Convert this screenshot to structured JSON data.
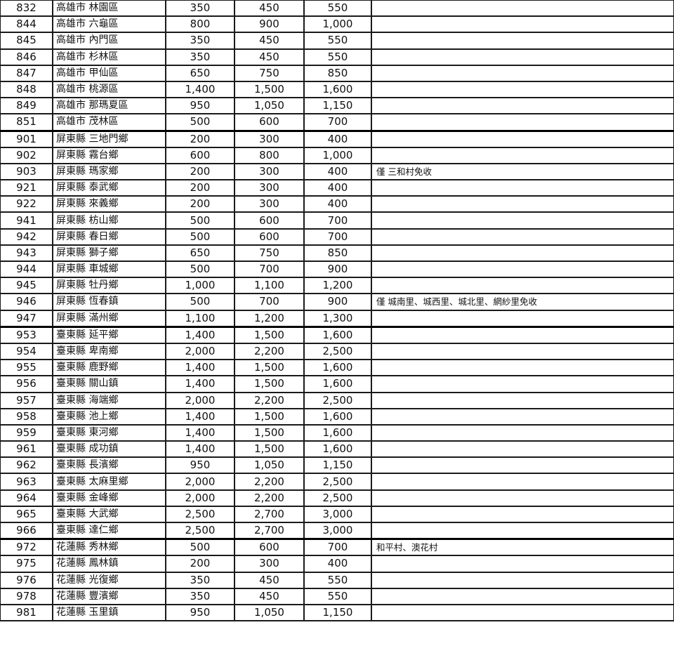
{
  "rows": [
    {
      "code": "832",
      "name": "高雄市 林園區",
      "a": "350",
      "b": "450",
      "c": "550",
      "note": ""
    },
    {
      "code": "844",
      "name": "高雄市 六龜區",
      "a": "800",
      "b": "900",
      "c": "1,000",
      "note": ""
    },
    {
      "code": "845",
      "name": "高雄市 內門區",
      "a": "350",
      "b": "450",
      "c": "550",
      "note": ""
    },
    {
      "code": "846",
      "name": "高雄市 杉林區",
      "a": "350",
      "b": "450",
      "c": "550",
      "note": ""
    },
    {
      "code": "847",
      "name": "高雄市 甲仙區",
      "a": "650",
      "b": "750",
      "c": "850",
      "note": ""
    },
    {
      "code": "848",
      "name": "高雄市 桃源區",
      "a": "1,400",
      "b": "1,500",
      "c": "1,600",
      "note": ""
    },
    {
      "code": "849",
      "name": "高雄市 那瑪夏區",
      "a": "950",
      "b": "1,050",
      "c": "1,150",
      "note": ""
    },
    {
      "code": "851",
      "name": "高雄市 茂林區",
      "a": "500",
      "b": "600",
      "c": "700",
      "note": "",
      "groupEnd": true
    },
    {
      "code": "901",
      "name": "屏東縣 三地門鄉",
      "a": "200",
      "b": "300",
      "c": "400",
      "note": ""
    },
    {
      "code": "902",
      "name": "屏東縣 霧台鄉",
      "a": "600",
      "b": "800",
      "c": "1,000",
      "note": ""
    },
    {
      "code": "903",
      "name": "屏東縣 瑪家鄉",
      "a": "200",
      "b": "300",
      "c": "400",
      "note": "僅 三和村免收"
    },
    {
      "code": "921",
      "name": "屏東縣 泰武鄉",
      "a": "200",
      "b": "300",
      "c": "400",
      "note": ""
    },
    {
      "code": "922",
      "name": "屏東縣 來義鄉",
      "a": "200",
      "b": "300",
      "c": "400",
      "note": ""
    },
    {
      "code": "941",
      "name": "屏東縣 枋山鄉",
      "a": "500",
      "b": "600",
      "c": "700",
      "note": ""
    },
    {
      "code": "942",
      "name": "屏東縣 春日鄉",
      "a": "500",
      "b": "600",
      "c": "700",
      "note": ""
    },
    {
      "code": "943",
      "name": "屏東縣 獅子鄉",
      "a": "650",
      "b": "750",
      "c": "850",
      "note": ""
    },
    {
      "code": "944",
      "name": "屏東縣 車城鄉",
      "a": "500",
      "b": "700",
      "c": "900",
      "note": ""
    },
    {
      "code": "945",
      "name": "屏東縣 牡丹鄉",
      "a": "1,000",
      "b": "1,100",
      "c": "1,200",
      "note": ""
    },
    {
      "code": "946",
      "name": "屏東縣 恆春鎮",
      "a": "500",
      "b": "700",
      "c": "900",
      "note": "僅 城南里、城西里、城北里、網紗里免收"
    },
    {
      "code": "947",
      "name": "屏東縣 滿州鄉",
      "a": "1,100",
      "b": "1,200",
      "c": "1,300",
      "note": "",
      "groupEnd": true
    },
    {
      "code": "953",
      "name": "臺東縣 延平鄉",
      "a": "1,400",
      "b": "1,500",
      "c": "1,600",
      "note": ""
    },
    {
      "code": "954",
      "name": "臺東縣 卑南鄉",
      "a": "2,000",
      "b": "2,200",
      "c": "2,500",
      "note": ""
    },
    {
      "code": "955",
      "name": "臺東縣 鹿野鄉",
      "a": "1,400",
      "b": "1,500",
      "c": "1,600",
      "note": ""
    },
    {
      "code": "956",
      "name": "臺東縣 關山鎮",
      "a": "1,400",
      "b": "1,500",
      "c": "1,600",
      "note": ""
    },
    {
      "code": "957",
      "name": "臺東縣 海端鄉",
      "a": "2,000",
      "b": "2,200",
      "c": "2,500",
      "note": ""
    },
    {
      "code": "958",
      "name": "臺東縣 池上鄉",
      "a": "1,400",
      "b": "1,500",
      "c": "1,600",
      "note": ""
    },
    {
      "code": "959",
      "name": "臺東縣 東河鄉",
      "a": "1,400",
      "b": "1,500",
      "c": "1,600",
      "note": ""
    },
    {
      "code": "961",
      "name": "臺東縣 成功鎮",
      "a": "1,400",
      "b": "1,500",
      "c": "1,600",
      "note": ""
    },
    {
      "code": "962",
      "name": "臺東縣 長濱鄉",
      "a": "950",
      "b": "1,050",
      "c": "1,150",
      "note": ""
    },
    {
      "code": "963",
      "name": "臺東縣 太麻里鄉",
      "a": "2,000",
      "b": "2,200",
      "c": "2,500",
      "note": ""
    },
    {
      "code": "964",
      "name": "臺東縣 金峰鄉",
      "a": "2,000",
      "b": "2,200",
      "c": "2,500",
      "note": ""
    },
    {
      "code": "965",
      "name": "臺東縣 大武鄉",
      "a": "2,500",
      "b": "2,700",
      "c": "3,000",
      "note": ""
    },
    {
      "code": "966",
      "name": "臺東縣 達仁鄉",
      "a": "2,500",
      "b": "2,700",
      "c": "3,000",
      "note": "",
      "groupEnd": true
    },
    {
      "code": "972",
      "name": "花蓮縣 秀林鄉",
      "a": "500",
      "b": "600",
      "c": "700",
      "note": "和平村、澳花村"
    },
    {
      "code": "975",
      "name": "花蓮縣 鳳林鎮",
      "a": "200",
      "b": "300",
      "c": "400",
      "note": ""
    },
    {
      "code": "976",
      "name": "花蓮縣 光復鄉",
      "a": "350",
      "b": "450",
      "c": "550",
      "note": ""
    },
    {
      "code": "978",
      "name": "花蓮縣 豐濱鄉",
      "a": "350",
      "b": "450",
      "c": "550",
      "note": ""
    },
    {
      "code": "981",
      "name": "花蓮縣 玉里鎮",
      "a": "950",
      "b": "1,050",
      "c": "1,150",
      "note": ""
    }
  ]
}
